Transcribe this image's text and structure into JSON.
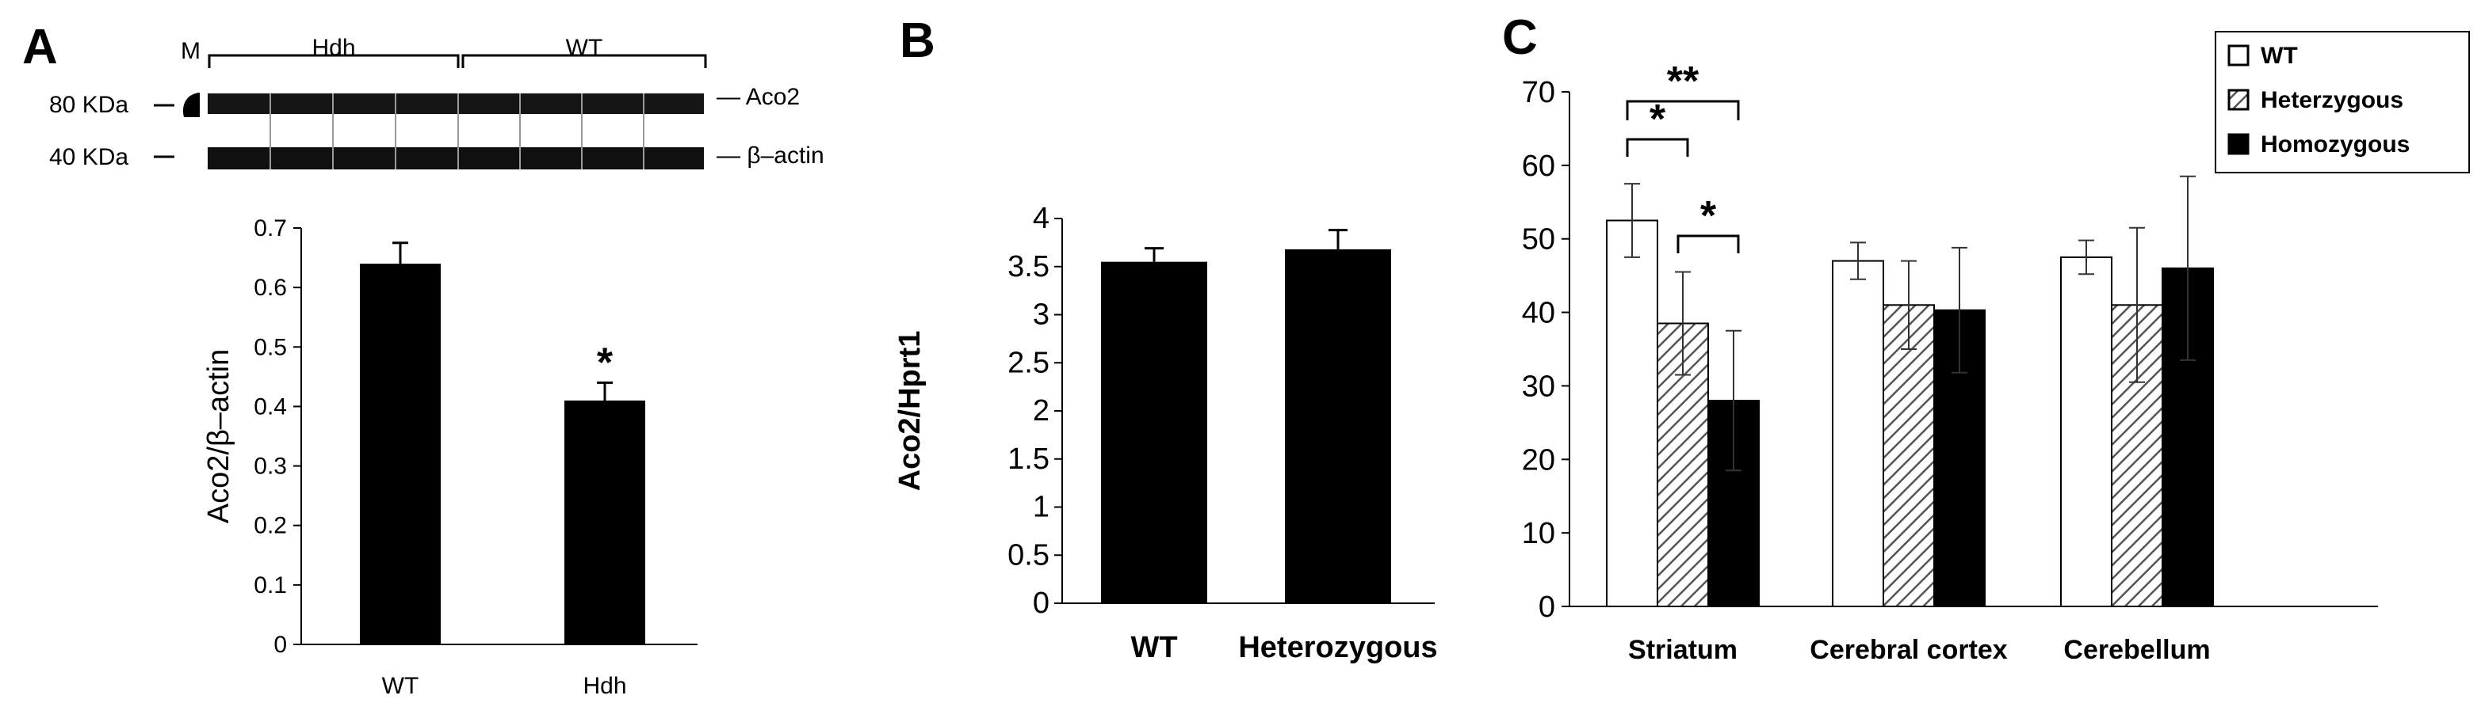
{
  "panels": {
    "a": {
      "label": "A"
    },
    "b": {
      "label": "B"
    },
    "c": {
      "label": "C"
    }
  },
  "blot": {
    "marker_label": "M",
    "group1": "Hdh",
    "group2": "WT",
    "mw_top": "80 KDa",
    "mw_bottom": "40 KDa",
    "band_top": "Aco2",
    "band_bottom": "β–actin"
  },
  "chart_data": [
    {
      "type": "bar",
      "panel": "A",
      "categories": [
        "WT",
        "Hdh"
      ],
      "values": [
        0.64,
        0.41
      ],
      "errors": [
        0.035,
        0.03
      ],
      "significance": [
        "",
        "*"
      ],
      "ylabel": "Aco2/β–actin",
      "xlabel": "",
      "ylim": [
        0,
        0.7
      ],
      "yticks": [
        "0",
        "0.1",
        "0.2",
        "0.3",
        "0.4",
        "0.5",
        "0.6",
        "0.7"
      ],
      "colors": {
        "bars": "#000000"
      }
    },
    {
      "type": "bar",
      "panel": "B",
      "categories": [
        "WT",
        "Heterozygous"
      ],
      "values": [
        3.55,
        3.68
      ],
      "errors": [
        0.14,
        0.2
      ],
      "ylabel": "Aco2/Hprt1",
      "xlabel": "",
      "ylim": [
        0,
        4
      ],
      "yticks": [
        "0",
        "0.5",
        "1",
        "1.5",
        "2",
        "2.5",
        "3",
        "3.5",
        "4"
      ],
      "colors": {
        "bars": "#000000"
      }
    },
    {
      "type": "bar",
      "panel": "C",
      "categories": [
        "Striatum",
        "Cerebral cortex",
        "Cerebellum"
      ],
      "series": [
        {
          "name": "WT",
          "values": [
            52.5,
            47,
            47.5
          ],
          "errors": [
            5,
            2.5,
            2.3
          ],
          "fill": "open"
        },
        {
          "name": "Heterzygous",
          "values": [
            38.5,
            41,
            41
          ],
          "errors": [
            7,
            6,
            10.5
          ],
          "fill": "hatched"
        },
        {
          "name": "Homozygous",
          "values": [
            28,
            40.3,
            46
          ],
          "errors": [
            9.5,
            8.5,
            12.5
          ],
          "fill": "solid"
        }
      ],
      "significance": [
        {
          "label": "**",
          "between": [
            "WT",
            "Homozygous"
          ],
          "category": "Striatum"
        },
        {
          "label": "*",
          "between": [
            "WT",
            "Heterzygous"
          ],
          "category": "Striatum"
        },
        {
          "label": "*",
          "between": [
            "Heterzygous",
            "Homozygous"
          ],
          "category": "Striatum"
        }
      ],
      "ylabel": "",
      "xlabel": "",
      "ylim": [
        0,
        70
      ],
      "yticks": [
        "0",
        "10",
        "20",
        "30",
        "40",
        "50",
        "60",
        "70"
      ],
      "legend": "top-right",
      "colors": {
        "open": "#ffffff",
        "solid": "#000000",
        "hatch": "#555555"
      }
    }
  ]
}
